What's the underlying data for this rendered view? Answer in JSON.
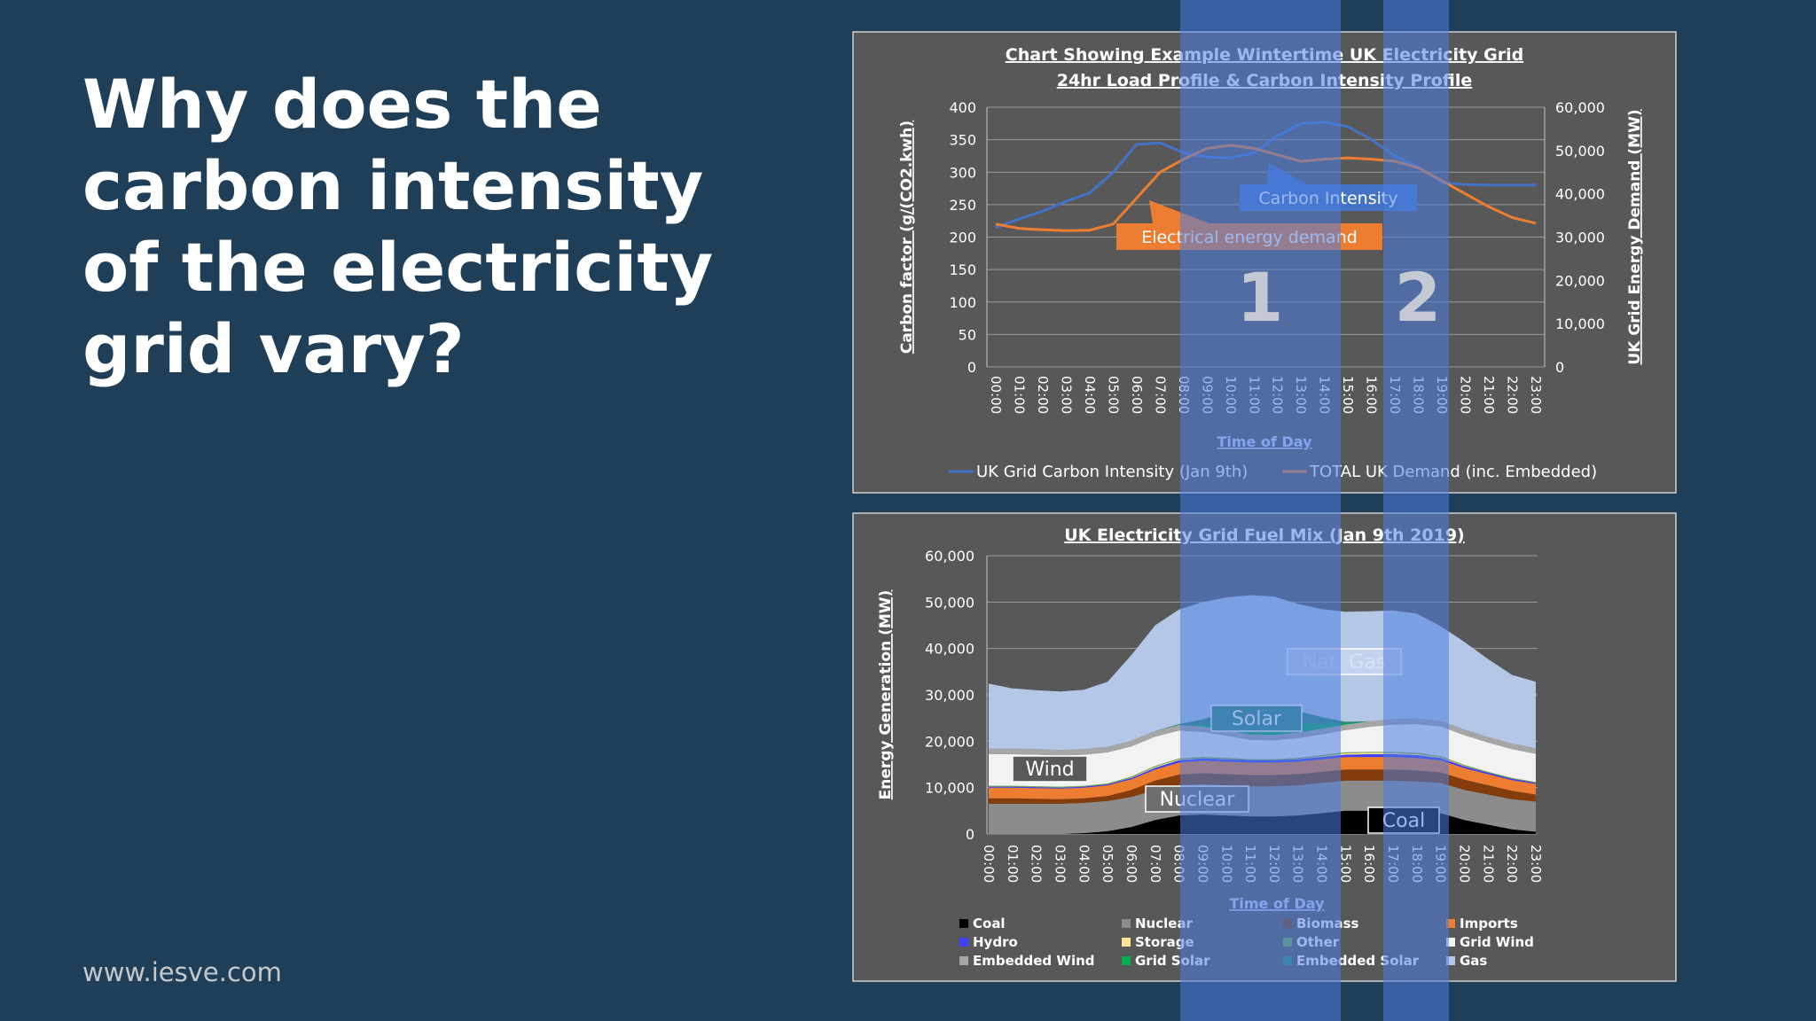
{
  "slide": {
    "heading_lines": [
      "Why does the",
      "carbon intensity",
      "of the electricity",
      "grid vary?"
    ],
    "website": "www.iesve.com",
    "highlight_numbers": [
      "1",
      "2"
    ]
  },
  "chart_data": [
    {
      "type": "line",
      "title_lines": [
        "Chart Showing Example Wintertime UK Electricity Grid",
        "24hr Load Profile & Carbon Intensity Profile"
      ],
      "xlabel": "Time of Day",
      "ylabel": "Carbon factor (g/(CO2.kwh)",
      "y2label": "UK Grid Energy Demand (MW)",
      "x": [
        "00:00",
        "01:00",
        "02:00",
        "03:00",
        "04:00",
        "05:00",
        "06:00",
        "07:00",
        "08:00",
        "09:00",
        "10:00",
        "11:00",
        "12:00",
        "13:00",
        "14:00",
        "15:00",
        "16:00",
        "17:00",
        "18:00",
        "19:00",
        "20:00",
        "21:00",
        "22:00",
        "23:00"
      ],
      "ylim": [
        0,
        400
      ],
      "yticks": [
        0,
        50,
        100,
        150,
        200,
        250,
        300,
        350,
        400
      ],
      "y2lim": [
        0,
        60000
      ],
      "y2ticks": [
        "0",
        "10,000",
        "20,000",
        "30,000",
        "40,000",
        "50,000",
        "60,000"
      ],
      "grid": true,
      "legend_position": "bottom",
      "series": [
        {
          "name": "UK Grid Carbon Intensity (Jan 9th)",
          "axis": "left",
          "color": "#4472c4",
          "values": [
            215,
            228,
            240,
            255,
            268,
            300,
            343,
            345,
            330,
            323,
            322,
            330,
            356,
            375,
            377,
            370,
            350,
            325,
            308,
            284,
            281,
            280,
            280,
            280
          ]
        },
        {
          "name": "TOTAL UK Demand (inc. Embedded)",
          "axis": "right",
          "color": "#ed7d31",
          "values": [
            33000,
            32000,
            31700,
            31500,
            31600,
            33000,
            39000,
            45000,
            48000,
            50500,
            51200,
            50500,
            49000,
            47500,
            48000,
            48300,
            48000,
            47500,
            46000,
            43000,
            40000,
            37000,
            34500,
            33200
          ]
        }
      ],
      "annotations": [
        {
          "text": "Carbon Intensity",
          "color": "#4472c4"
        },
        {
          "text": "Electrical energy demand",
          "color": "#ed7d31"
        }
      ]
    },
    {
      "type": "area",
      "stacked": true,
      "title": "UK Electricity Grid Fuel Mix (Jan 9th 2019)",
      "xlabel": "Time of Day",
      "ylabel": "Energy Generation (MW)",
      "x": [
        "00:00",
        "01:00",
        "02:00",
        "03:00",
        "04:00",
        "05:00",
        "06:00",
        "07:00",
        "08:00",
        "09:00",
        "10:00",
        "11:00",
        "12:00",
        "13:00",
        "14:00",
        "15:00",
        "16:00",
        "17:00",
        "18:00",
        "19:00",
        "20:00",
        "21:00",
        "22:00",
        "23:00"
      ],
      "ylim": [
        0,
        60000
      ],
      "yticks": [
        "0",
        "10,000",
        "20,000",
        "30,000",
        "40,000",
        "50,000",
        "60,000"
      ],
      "grid": true,
      "legend_position": "bottom",
      "series": [
        {
          "name": "Coal",
          "color": "#000000",
          "values": [
            0,
            0,
            0,
            0,
            200,
            600,
            1500,
            3000,
            4000,
            4200,
            4000,
            3800,
            3800,
            4000,
            4500,
            5000,
            5000,
            5000,
            4800,
            4500,
            3000,
            2000,
            1000,
            500
          ]
        },
        {
          "name": "Nuclear",
          "color": "#8c8c8c",
          "values": [
            6500,
            6500,
            6500,
            6500,
            6500,
            6500,
            6500,
            6500,
            6500,
            6500,
            6500,
            6500,
            6500,
            6500,
            6500,
            6500,
            6500,
            6500,
            6500,
            6500,
            6500,
            6500,
            6500,
            6500
          ]
        },
        {
          "name": "Biomass",
          "color": "#843c0c",
          "values": [
            1200,
            1200,
            1100,
            1000,
            1000,
            1100,
            1500,
            2000,
            2300,
            2400,
            2400,
            2400,
            2400,
            2400,
            2400,
            2400,
            2400,
            2400,
            2400,
            2300,
            2200,
            2000,
            1800,
            1500
          ]
        },
        {
          "name": "Imports",
          "color": "#ed7d31",
          "values": [
            2300,
            2300,
            2300,
            2300,
            2300,
            2300,
            2300,
            2400,
            2600,
            2700,
            2700,
            2700,
            2700,
            2700,
            2700,
            2700,
            2700,
            2700,
            2700,
            2600,
            2500,
            2400,
            2300,
            2300
          ]
        },
        {
          "name": "Hydro",
          "color": "#3f3fff",
          "values": [
            200,
            200,
            200,
            200,
            200,
            200,
            300,
            400,
            500,
            500,
            500,
            500,
            500,
            500,
            500,
            500,
            600,
            600,
            600,
            500,
            400,
            300,
            300,
            200
          ]
        },
        {
          "name": "Storage",
          "color": "#ffe699",
          "values": [
            0,
            0,
            0,
            0,
            0,
            0,
            100,
            200,
            200,
            100,
            100,
            0,
            0,
            100,
            200,
            300,
            300,
            300,
            300,
            200,
            100,
            0,
            0,
            0
          ]
        },
        {
          "name": "Other",
          "color": "#70ad47",
          "values": [
            200,
            200,
            200,
            200,
            200,
            200,
            200,
            200,
            200,
            200,
            200,
            200,
            200,
            200,
            200,
            200,
            200,
            200,
            200,
            200,
            200,
            200,
            200,
            200
          ]
        },
        {
          "name": "Grid Wind",
          "color": "#f2f2f2",
          "values": [
            6800,
            6800,
            6800,
            6700,
            6700,
            6700,
            6500,
            6300,
            6000,
            5400,
            4800,
            4200,
            4100,
            4300,
            4500,
            4800,
            5400,
            5900,
            6200,
            6400,
            6400,
            6300,
            6200,
            6100
          ]
        },
        {
          "name": "Embedded Wind",
          "color": "#a6a6a6",
          "values": [
            1200,
            1200,
            1200,
            1200,
            1200,
            1200,
            1200,
            1200,
            1200,
            1200,
            1200,
            1200,
            1200,
            1200,
            1200,
            1200,
            1200,
            1200,
            1200,
            1200,
            1200,
            1200,
            1200,
            1200
          ]
        },
        {
          "name": "Grid Solar",
          "color": "#00b050",
          "values": [
            0,
            0,
            0,
            0,
            0,
            0,
            0,
            0,
            0,
            300,
            1500,
            2500,
            2800,
            2000,
            1000,
            200,
            0,
            0,
            0,
            0,
            0,
            0,
            0,
            0
          ]
        },
        {
          "name": "Embedded Solar",
          "color": "#2e8b7a",
          "values": [
            0,
            0,
            0,
            0,
            0,
            0,
            0,
            0,
            200,
            1200,
            2400,
            3200,
            3400,
            2600,
            1500,
            400,
            0,
            0,
            0,
            0,
            0,
            0,
            0,
            0
          ]
        },
        {
          "name": "Gas",
          "color": "#b4c7e7",
          "values": [
            14000,
            13000,
            12700,
            12600,
            12800,
            14000,
            18500,
            22800,
            24700,
            25300,
            24700,
            24300,
            23600,
            23100,
            23300,
            23700,
            23700,
            23400,
            22600,
            20400,
            18900,
            16800,
            14800,
            14300
          ]
        }
      ],
      "annotations": [
        "Nat. Gas",
        "Solar",
        "Wind",
        "Nuclear",
        "Coal"
      ]
    }
  ]
}
